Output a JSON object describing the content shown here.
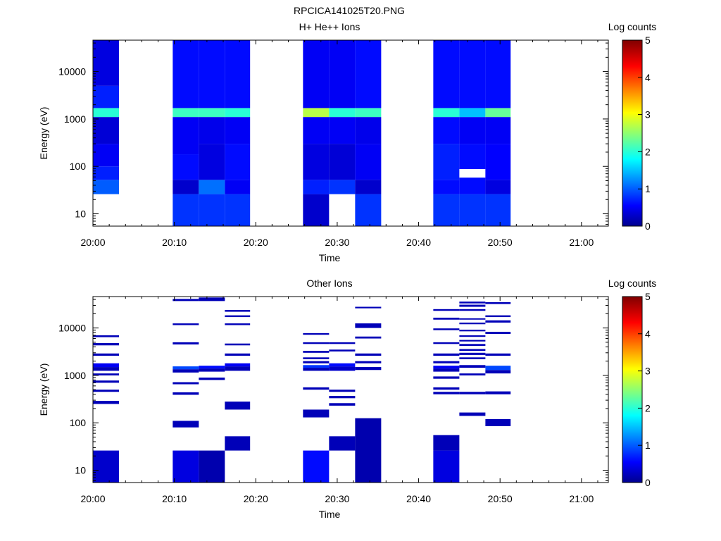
{
  "page_title": "RPCICA141025T20.PNG",
  "chart_data": [
    {
      "type": "heatmap",
      "title": "H+ He++ Ions",
      "xlabel": "Time",
      "ylabel": "Energy (eV)",
      "colorbar_label": "Log counts",
      "colorbar_ticks": [
        "0",
        "1",
        "2",
        "3",
        "4",
        "5"
      ],
      "xticks": [
        "20:00",
        "20:10",
        "20:20",
        "20:30",
        "20:40",
        "20:50",
        "21:00"
      ],
      "yticks": [
        "10",
        "100",
        "1000",
        "10000"
      ],
      "yscale": "log",
      "ylim": [
        5.5,
        46000
      ],
      "xlim_minutes": [
        0,
        63.3
      ],
      "clim": [
        0,
        5
      ],
      "colormap": "jet",
      "columns": [
        {
          "t0": 0.0,
          "t1": 3.2,
          "spectrum": [
            [
              26,
              52,
              1.0
            ],
            [
              52,
              100,
              0.7
            ],
            [
              100,
              300,
              0.5
            ],
            [
              300,
              1100,
              0.35
            ],
            [
              1100,
              1700,
              2.0
            ],
            [
              1700,
              5000,
              0.7
            ],
            [
              5000,
              46000,
              0.4
            ]
          ]
        },
        {
          "t0": 9.8,
          "t1": 13.0,
          "spectrum": [
            [
              5.5,
              26,
              0.8
            ],
            [
              26,
              52,
              0.3
            ],
            [
              52,
              180,
              0.6
            ],
            [
              180,
              1100,
              0.5
            ],
            [
              1100,
              1700,
              2.1
            ],
            [
              1700,
              46000,
              0.6
            ]
          ]
        },
        {
          "t0": 13.0,
          "t1": 16.2,
          "spectrum": [
            [
              5.5,
              26,
              0.8
            ],
            [
              26,
              52,
              1.1
            ],
            [
              52,
              300,
              0.4
            ],
            [
              300,
              1100,
              0.45
            ],
            [
              1100,
              1700,
              2.1
            ],
            [
              1700,
              46000,
              0.6
            ]
          ]
        },
        {
          "t0": 16.2,
          "t1": 19.3,
          "spectrum": [
            [
              5.5,
              26,
              0.8
            ],
            [
              26,
              52,
              0.5
            ],
            [
              52,
              300,
              0.6
            ],
            [
              300,
              1100,
              0.5
            ],
            [
              1100,
              1700,
              2.0
            ],
            [
              1700,
              46000,
              0.6
            ]
          ]
        },
        {
          "t0": 25.8,
          "t1": 29.0,
          "spectrum": [
            [
              5.5,
              26,
              0.3
            ],
            [
              26,
              52,
              0.7
            ],
            [
              52,
              300,
              0.4
            ],
            [
              300,
              1100,
              0.5
            ],
            [
              1100,
              1700,
              2.7
            ],
            [
              1700,
              46000,
              0.5
            ]
          ]
        },
        {
          "t0": 29.0,
          "t1": 32.2,
          "spectrum": [
            [
              26,
              52,
              0.8
            ],
            [
              52,
              300,
              0.35
            ],
            [
              300,
              1100,
              0.5
            ],
            [
              1100,
              1700,
              2.0
            ],
            [
              1700,
              46000,
              0.5
            ]
          ]
        },
        {
          "t0": 32.2,
          "t1": 35.4,
          "spectrum": [
            [
              5.5,
              26,
              0.8
            ],
            [
              26,
              52,
              0.3
            ],
            [
              52,
              300,
              0.5
            ],
            [
              300,
              1100,
              0.45
            ],
            [
              1100,
              1700,
              2.1
            ],
            [
              1700,
              46000,
              0.6
            ]
          ]
        },
        {
          "t0": 41.8,
          "t1": 45.0,
          "spectrum": [
            [
              5.5,
              26,
              0.8
            ],
            [
              26,
              52,
              0.6
            ],
            [
              52,
              300,
              0.7
            ],
            [
              300,
              1100,
              0.6
            ],
            [
              1100,
              1700,
              2.0
            ],
            [
              1700,
              46000,
              0.6
            ]
          ]
        },
        {
          "t0": 45.0,
          "t1": 48.2,
          "spectrum": [
            [
              5.5,
              26,
              0.8
            ],
            [
              26,
              58,
              0.6
            ],
            [
              88,
              300,
              0.6
            ],
            [
              300,
              1100,
              0.5
            ],
            [
              1100,
              1700,
              1.5
            ],
            [
              1700,
              46000,
              0.6
            ]
          ]
        },
        {
          "t0": 48.2,
          "t1": 51.3,
          "spectrum": [
            [
              5.5,
              26,
              0.8
            ],
            [
              26,
              52,
              0.4
            ],
            [
              52,
              300,
              0.55
            ],
            [
              300,
              1100,
              0.5
            ],
            [
              1100,
              1700,
              2.3
            ],
            [
              1700,
              46000,
              0.6
            ]
          ]
        }
      ]
    },
    {
      "type": "heatmap",
      "title": "Other Ions",
      "xlabel": "Time",
      "ylabel": "Energy (eV)",
      "colorbar_label": "Log counts",
      "colorbar_ticks": [
        "0",
        "1",
        "2",
        "3",
        "4",
        "5"
      ],
      "xticks": [
        "20:00",
        "20:10",
        "20:20",
        "20:30",
        "20:40",
        "20:50",
        "21:00"
      ],
      "yticks": [
        "10",
        "100",
        "1000",
        "10000"
      ],
      "yscale": "log",
      "ylim": [
        5.5,
        46000
      ],
      "xlim_minutes": [
        0,
        63.3
      ],
      "clim": [
        0,
        5
      ],
      "colormap": "jet",
      "columns": [
        {
          "t0": 0.0,
          "t1": 3.2,
          "bins": [
            [
              5.5,
              26,
              0.3
            ],
            [
              250,
              290,
              0.2
            ],
            [
              450,
              500,
              0.2
            ],
            [
              700,
              780,
              0.2
            ],
            [
              1000,
              1100,
              0.2
            ],
            [
              1250,
              1500,
              0.2
            ],
            [
              1500,
              1800,
              0.5
            ],
            [
              2600,
              2900,
              0.2
            ],
            [
              4300,
              4800,
              0.2
            ],
            [
              6400,
              7000,
              0.2
            ]
          ]
        },
        {
          "t0": 9.8,
          "t1": 13.0,
          "bins": [
            [
              5.5,
              26,
              0.4
            ],
            [
              80,
              110,
              0.2
            ],
            [
              390,
              440,
              0.2
            ],
            [
              650,
              720,
              0.2
            ],
            [
              1150,
              1350,
              0.2
            ],
            [
              1350,
              1550,
              0.9
            ],
            [
              4500,
              5000,
              0.2
            ],
            [
              11500,
              12500,
              0.2
            ],
            [
              37000,
              41000,
              0.2
            ]
          ]
        },
        {
          "t0": 13.0,
          "t1": 16.2,
          "bins": [
            [
              5.5,
              26,
              0.15
            ],
            [
              800,
              900,
              0.2
            ],
            [
              1200,
              1400,
              0.2
            ],
            [
              1400,
              1600,
              0.6
            ],
            [
              37000,
              44000,
              0.2
            ]
          ]
        },
        {
          "t0": 16.2,
          "t1": 19.3,
          "bins": [
            [
              26,
              52,
              0.2
            ],
            [
              190,
              280,
              0.2
            ],
            [
              1250,
              1550,
              0.2
            ],
            [
              1550,
              1800,
              0.5
            ],
            [
              2600,
              2900,
              0.2
            ],
            [
              4300,
              4700,
              0.2
            ],
            [
              11500,
              12500,
              0.2
            ],
            [
              17000,
              18500,
              0.2
            ],
            [
              22000,
              24000,
              0.2
            ]
          ]
        },
        {
          "t0": 25.8,
          "t1": 29.0,
          "bins": [
            [
              5.5,
              26,
              0.6
            ],
            [
              130,
              190,
              0.2
            ],
            [
              500,
              560,
              0.2
            ],
            [
              1250,
              1450,
              0.2
            ],
            [
              1450,
              1650,
              0.8
            ],
            [
              1800,
              2000,
              0.2
            ],
            [
              2200,
              2400,
              0.2
            ],
            [
              3000,
              3300,
              0.2
            ],
            [
              4600,
              5000,
              0.2
            ],
            [
              7200,
              7800,
              0.2
            ]
          ]
        },
        {
          "t0": 29.0,
          "t1": 32.2,
          "bins": [
            [
              26,
              52,
              0.2
            ],
            [
              230,
              260,
              0.2
            ],
            [
              330,
              370,
              0.2
            ],
            [
              450,
              500,
              0.2
            ],
            [
              1250,
              1550,
              0.3
            ],
            [
              1550,
              1800,
              0.6
            ],
            [
              3200,
              3500,
              0.2
            ],
            [
              4600,
              5000,
              0.2
            ]
          ]
        },
        {
          "t0": 32.2,
          "t1": 35.4,
          "bins": [
            [
              5.5,
              125,
              0.15
            ],
            [
              1300,
              1500,
              0.2
            ],
            [
              1800,
              2000,
              0.2
            ],
            [
              2600,
              2900,
              0.2
            ],
            [
              6000,
              6600,
              0.2
            ],
            [
              10000,
              12500,
              0.2
            ],
            [
              26000,
              28000,
              0.2
            ]
          ]
        },
        {
          "t0": 41.8,
          "t1": 45.0,
          "bins": [
            [
              5.5,
              26,
              0.4
            ],
            [
              26,
              55,
              0.2
            ],
            [
              400,
              450,
              0.2
            ],
            [
              500,
              560,
              0.2
            ],
            [
              850,
              950,
              0.2
            ],
            [
              1200,
              1400,
              0.2
            ],
            [
              1400,
              1600,
              0.5
            ],
            [
              1800,
              2000,
              0.2
            ],
            [
              2600,
              2900,
              0.2
            ],
            [
              4600,
              5000,
              0.2
            ],
            [
              9000,
              9800,
              0.2
            ],
            [
              15000,
              16500,
              0.2
            ],
            [
              23000,
              25000,
              0.2
            ]
          ]
        },
        {
          "t0": 45.0,
          "t1": 48.2,
          "bins": [
            [
              140,
              165,
              0.2
            ],
            [
              400,
              450,
              0.2
            ],
            [
              1000,
              1100,
              0.2
            ],
            [
              1450,
              1650,
              0.2
            ],
            [
              2200,
              2400,
              0.2
            ],
            [
              2700,
              3000,
              0.2
            ],
            [
              3300,
              3600,
              0.2
            ],
            [
              4200,
              4600,
              0.2
            ],
            [
              5200,
              5600,
              0.2
            ],
            [
              6500,
              7000,
              0.2
            ],
            [
              8500,
              9200,
              0.2
            ],
            [
              12000,
              13000,
              0.2
            ],
            [
              15000,
              16000,
              0.2
            ],
            [
              23000,
              25000,
              0.2
            ],
            [
              28000,
              31000,
              0.2
            ],
            [
              33000,
              36000,
              0.2
            ]
          ]
        },
        {
          "t0": 48.2,
          "t1": 51.3,
          "bins": [
            [
              85,
              120,
              0.2
            ],
            [
              400,
              460,
              0.2
            ],
            [
              1100,
              1300,
              0.2
            ],
            [
              1300,
              1600,
              0.9
            ],
            [
              2600,
              2900,
              0.2
            ],
            [
              7500,
              8300,
              0.2
            ],
            [
              13000,
              14500,
              0.2
            ],
            [
              17000,
              18500,
              0.2
            ],
            [
              32000,
              35000,
              0.2
            ]
          ]
        }
      ]
    }
  ]
}
